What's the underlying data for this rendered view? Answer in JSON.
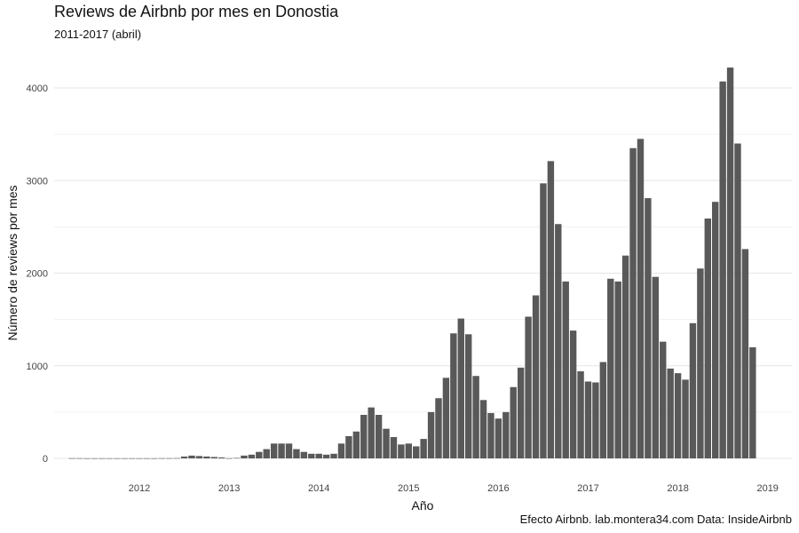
{
  "chart_data": {
    "type": "bar",
    "title": "Reviews de Airbnb por mes en Donostia",
    "subtitle": "2011-2017 (abril)",
    "xlabel": "Año",
    "ylabel": "Número de reviews por mes",
    "caption": "Efecto Airbnb. lab.montera34.com Data: InsideAirbnb",
    "x_range": [
      "2011-03",
      "2019-03"
    ],
    "ylim": [
      -100,
      4250
    ],
    "x_ticks": [
      "2012",
      "2013",
      "2014",
      "2015",
      "2016",
      "2017",
      "2018",
      "2019"
    ],
    "y_ticks": [
      0,
      1000,
      2000,
      3000,
      4000
    ],
    "grid": true,
    "bar_color": "#595959",
    "categories": [
      "2011-04",
      "2011-05",
      "2011-06",
      "2011-07",
      "2011-08",
      "2011-09",
      "2011-10",
      "2011-11",
      "2011-12",
      "2012-01",
      "2012-02",
      "2012-03",
      "2012-04",
      "2012-05",
      "2012-06",
      "2012-07",
      "2012-08",
      "2012-09",
      "2012-10",
      "2012-11",
      "2012-12",
      "2013-01",
      "2013-02",
      "2013-03",
      "2013-04",
      "2013-05",
      "2013-06",
      "2013-07",
      "2013-08",
      "2013-09",
      "2013-10",
      "2013-11",
      "2013-12",
      "2014-01",
      "2014-02",
      "2014-03",
      "2014-04",
      "2014-05",
      "2014-06",
      "2014-07",
      "2014-08",
      "2014-09",
      "2014-10",
      "2014-11",
      "2014-12",
      "2015-01",
      "2015-02",
      "2015-03",
      "2015-04",
      "2015-05",
      "2015-06",
      "2015-07",
      "2015-08",
      "2015-09",
      "2015-10",
      "2015-11",
      "2015-12",
      "2016-01",
      "2016-02",
      "2016-03",
      "2016-04",
      "2016-05",
      "2016-06",
      "2016-07",
      "2016-08",
      "2016-09",
      "2016-10",
      "2016-11",
      "2016-12",
      "2017-01",
      "2017-02",
      "2017-03",
      "2017-04",
      "2017-05",
      "2017-06",
      "2017-07",
      "2017-08",
      "2017-09",
      "2017-10",
      "2017-11",
      "2017-12",
      "2018-01",
      "2018-02",
      "2018-03",
      "2018-04",
      "2018-05",
      "2018-06",
      "2018-07",
      "2018-08",
      "2018-09",
      "2018-10",
      "2018-11"
    ],
    "values": [
      2,
      2,
      1,
      1,
      1,
      1,
      1,
      1,
      1,
      1,
      1,
      1,
      2,
      2,
      3,
      20,
      30,
      25,
      20,
      15,
      10,
      2,
      5,
      30,
      40,
      70,
      100,
      160,
      160,
      160,
      100,
      70,
      50,
      50,
      40,
      50,
      160,
      240,
      290,
      470,
      550,
      470,
      320,
      230,
      150,
      160,
      130,
      210,
      500,
      650,
      870,
      1350,
      1510,
      1340,
      890,
      630,
      490,
      430,
      500,
      770,
      980,
      1530,
      1760,
      2970,
      3210,
      2530,
      1910,
      1380,
      940,
      830,
      820,
      1040,
      1940,
      1910,
      2190,
      3350,
      3450,
      2810,
      1960,
      1260,
      970,
      920,
      850,
      1460,
      2050,
      2590,
      2770,
      4070,
      4220,
      3400,
      2260,
      1200
    ]
  }
}
